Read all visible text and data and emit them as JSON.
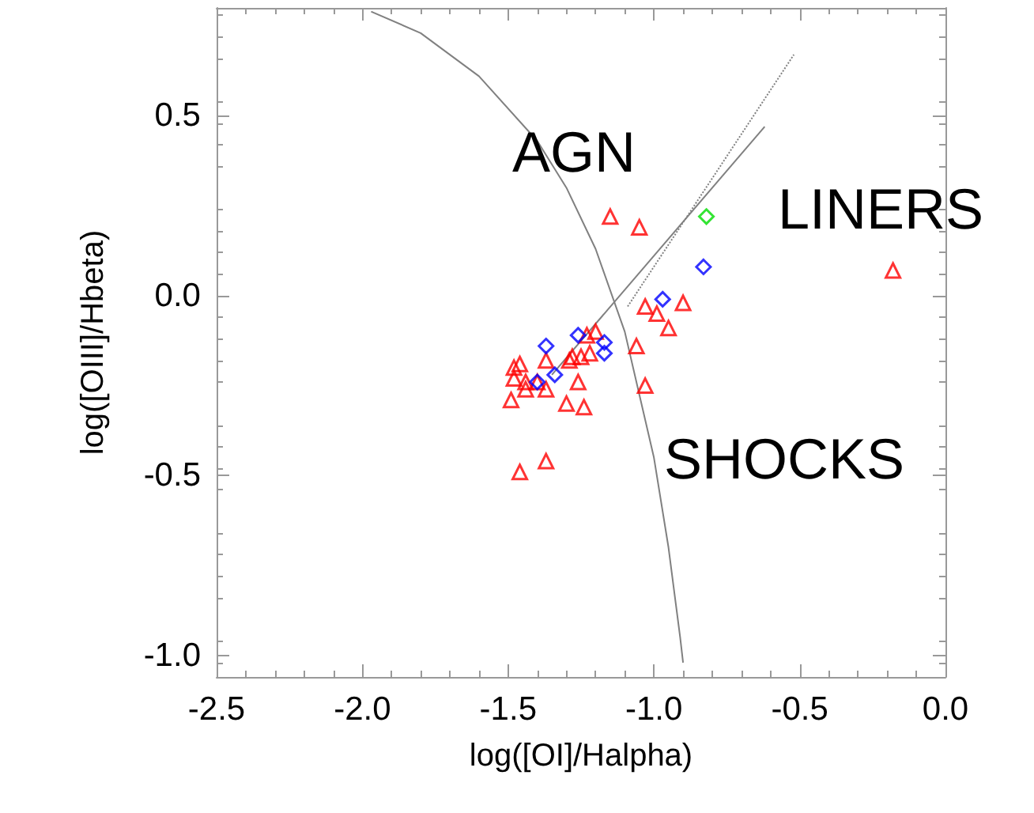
{
  "chart_data": {
    "type": "scatter",
    "xlabel": "log([OI]/Halpha)",
    "ylabel": "log([OIII]/Hbeta)",
    "xlim": [
      -2.5,
      0.0
    ],
    "ylim": [
      -1.06,
      0.8
    ],
    "xticks": [
      {
        "value": -2.5,
        "label": "-2.5"
      },
      {
        "value": -2.0,
        "label": "-2.0"
      },
      {
        "value": -1.5,
        "label": "-1.5"
      },
      {
        "value": -1.0,
        "label": "-1.0"
      },
      {
        "value": -0.5,
        "label": "-0.5"
      },
      {
        "value": 0,
        "label": "0.0"
      }
    ],
    "yticks": [
      {
        "value": -1.0,
        "label": "-1.0"
      },
      {
        "value": -0.5,
        "label": "-0.5"
      },
      {
        "value": 0,
        "label": "0.0"
      },
      {
        "value": 0.5,
        "label": "0.5"
      }
    ],
    "series": [
      {
        "type": "line",
        "color": "#808080",
        "marker": "none",
        "line_style": "solid",
        "x": [
          -1.97,
          -1.8,
          -1.6,
          -1.4,
          -1.3,
          -1.2,
          -1.1,
          -1.0,
          -0.95,
          -0.91,
          -0.9
        ],
        "values": [
          0.79,
          0.73,
          0.61,
          0.43,
          0.3,
          0.13,
          -0.1,
          -0.45,
          -0.7,
          -0.95,
          -1.02
        ]
      },
      {
        "type": "line",
        "color": "#808080",
        "marker": "none",
        "line_style": "solid",
        "x": [
          -1.35,
          -0.62
        ],
        "values": [
          -0.22,
          0.47
        ]
      },
      {
        "type": "line",
        "color": "#808080",
        "marker": "none",
        "line_style": "dotted",
        "x": [
          -1.09,
          -0.52
        ],
        "values": [
          -0.03,
          0.67
        ]
      },
      {
        "color": "#ff0000",
        "marker": "triangle",
        "x": [
          -1.15,
          -1.05,
          -1.03,
          -0.99,
          -0.9,
          -0.95,
          -1.06,
          -1.03,
          -1.2,
          -1.23,
          -1.22,
          -1.25,
          -1.28,
          -1.29,
          -1.26,
          -1.3,
          -1.24,
          -1.37,
          -1.37,
          -1.46,
          -1.48,
          -1.44,
          -1.48,
          -1.49,
          -1.44,
          -1.4,
          -1.46,
          -1.37,
          -0.18
        ],
        "values": [
          0.22,
          0.19,
          -0.03,
          -0.05,
          -0.02,
          -0.09,
          -0.14,
          -0.25,
          -0.1,
          -0.11,
          -0.16,
          -0.17,
          -0.17,
          -0.18,
          -0.24,
          -0.3,
          -0.31,
          -0.18,
          -0.26,
          -0.19,
          -0.2,
          -0.24,
          -0.23,
          -0.29,
          -0.26,
          -0.24,
          -0.49,
          -0.46,
          0.07
        ]
      },
      {
        "color": "#0000ff",
        "marker": "diamond",
        "x": [
          -0.97,
          -0.83,
          -1.26,
          -1.37,
          -1.17,
          -1.17,
          -1.34,
          -1.4
        ],
        "values": [
          -0.01,
          0.08,
          -0.11,
          -0.14,
          -0.13,
          -0.16,
          -0.22,
          -0.24
        ]
      },
      {
        "color": "#00dd00",
        "marker": "diamond",
        "x": [
          -0.82
        ],
        "values": [
          0.22
        ]
      }
    ],
    "annotations": [
      "AGN",
      "LINERS",
      "SHOCKS"
    ]
  }
}
